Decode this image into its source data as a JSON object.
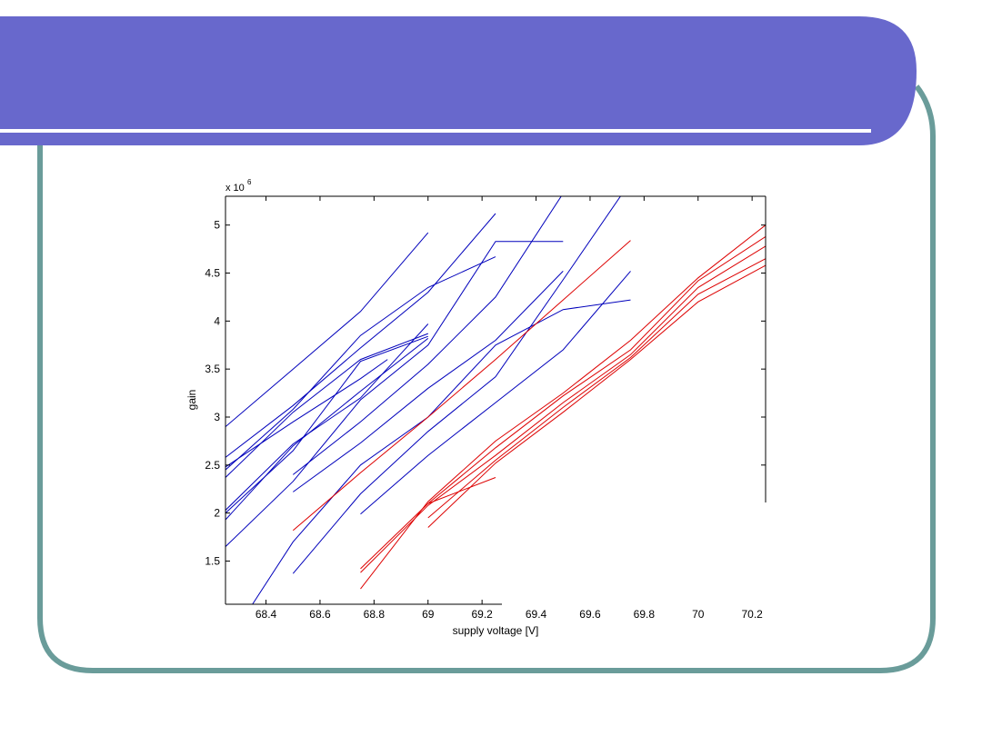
{
  "slide": {
    "theme_colors": {
      "banner": "#6868cc",
      "frame": "#6a9c9a",
      "white_rule": "#ffffff"
    }
  },
  "chart_data": {
    "type": "line",
    "title": "",
    "xlabel": "supply voltage [V]",
    "ylabel": "gain",
    "y_multiplier_label": "x 10",
    "y_multiplier_exponent": "6",
    "xlim": [
      68.25,
      70.25
    ],
    "ylim": [
      1.05,
      5.3
    ],
    "x_ticks": [
      68.4,
      68.6,
      68.8,
      69,
      69.2,
      69.4,
      69.6,
      69.8,
      70,
      70.2
    ],
    "x_tick_labels": [
      "68.4",
      "68.6",
      "68.8",
      "69",
      "69.2",
      "69.4",
      "69.6",
      "69.8",
      "70",
      "70.2"
    ],
    "y_ticks": [
      1.5,
      2,
      2.5,
      3,
      3.5,
      4,
      4.5,
      5
    ],
    "y_tick_labels": [
      "1.5",
      "2",
      "2.5",
      "3",
      "3.5",
      "4",
      "4.5",
      "5"
    ],
    "grid": false,
    "series_colors": {
      "blue": "#0000bb",
      "red": "#dd0000"
    },
    "series": [
      {
        "color": "blue",
        "points": [
          [
            68.25,
            2.9
          ],
          [
            68.5,
            3.5
          ],
          [
            68.75,
            4.1
          ],
          [
            69.0,
            4.92
          ]
        ]
      },
      {
        "color": "blue",
        "points": [
          [
            68.25,
            2.58
          ],
          [
            68.5,
            3.12
          ],
          [
            68.75,
            3.72
          ],
          [
            69.0,
            4.3
          ],
          [
            69.25,
            5.12
          ]
        ]
      },
      {
        "color": "blue",
        "points": [
          [
            68.25,
            2.45
          ],
          [
            68.5,
            3.08
          ],
          [
            68.75,
            3.85
          ],
          [
            69.0,
            4.35
          ],
          [
            69.25,
            4.67
          ]
        ]
      },
      {
        "color": "blue",
        "points": [
          [
            68.25,
            2.37
          ],
          [
            68.5,
            3.05
          ],
          [
            68.75,
            3.6
          ],
          [
            69.0,
            3.87
          ]
        ]
      },
      {
        "color": "blue",
        "points": [
          [
            68.25,
            2.48
          ],
          [
            68.5,
            2.95
          ],
          [
            68.75,
            3.4
          ],
          [
            68.85,
            3.6
          ]
        ]
      },
      {
        "color": "blue",
        "points": [
          [
            68.25,
            2.03
          ],
          [
            68.5,
            2.72
          ],
          [
            68.75,
            3.2
          ],
          [
            69.0,
            3.97
          ]
        ]
      },
      {
        "color": "blue",
        "points": [
          [
            68.25,
            1.93
          ],
          [
            68.5,
            2.7
          ],
          [
            68.75,
            3.27
          ],
          [
            69.0,
            3.82
          ]
        ]
      },
      {
        "color": "blue",
        "points": [
          [
            68.25,
            2.0
          ],
          [
            68.5,
            2.65
          ],
          [
            68.75,
            3.58
          ],
          [
            69.0,
            3.84
          ]
        ]
      },
      {
        "color": "blue",
        "points": [
          [
            68.25,
            1.65
          ],
          [
            68.5,
            2.33
          ],
          [
            68.75,
            3.18
          ],
          [
            69.0,
            3.75
          ],
          [
            69.25,
            4.83
          ],
          [
            69.5,
            4.83
          ]
        ]
      },
      {
        "color": "blue",
        "points": [
          [
            68.5,
            2.4
          ],
          [
            68.75,
            2.95
          ],
          [
            69.0,
            3.55
          ],
          [
            69.25,
            4.25
          ],
          [
            69.5,
            5.33
          ]
        ]
      },
      {
        "color": "blue",
        "points": [
          [
            68.5,
            2.22
          ],
          [
            68.75,
            2.73
          ],
          [
            69.0,
            3.3
          ],
          [
            69.25,
            3.8
          ],
          [
            69.5,
            4.52
          ]
        ]
      },
      {
        "color": "blue",
        "points": [
          [
            68.35,
            1.05
          ],
          [
            68.5,
            1.7
          ],
          [
            68.75,
            2.5
          ],
          [
            69.0,
            3.0
          ],
          [
            69.25,
            3.75
          ],
          [
            69.5,
            4.12
          ],
          [
            69.75,
            4.22
          ]
        ]
      },
      {
        "color": "blue",
        "points": [
          [
            68.5,
            1.37
          ],
          [
            68.75,
            2.2
          ],
          [
            69.0,
            2.85
          ],
          [
            69.25,
            3.42
          ],
          [
            69.5,
            4.43
          ],
          [
            69.72,
            5.33
          ]
        ]
      },
      {
        "color": "blue",
        "points": [
          [
            68.75,
            1.99
          ],
          [
            69.0,
            2.6
          ],
          [
            69.25,
            3.15
          ],
          [
            69.5,
            3.7
          ],
          [
            69.75,
            4.52
          ]
        ]
      },
      {
        "color": "red",
        "points": [
          [
            68.5,
            1.82
          ],
          [
            68.75,
            2.42
          ],
          [
            69.0,
            3.0
          ],
          [
            69.25,
            3.6
          ],
          [
            69.5,
            4.22
          ],
          [
            69.75,
            4.84
          ]
        ]
      },
      {
        "color": "red",
        "points": [
          [
            68.75,
            1.21
          ],
          [
            69.0,
            2.12
          ],
          [
            69.25,
            2.75
          ],
          [
            69.5,
            3.25
          ],
          [
            69.75,
            3.8
          ],
          [
            70.0,
            4.45
          ],
          [
            70.25,
            5.0
          ]
        ]
      },
      {
        "color": "red",
        "points": [
          [
            68.75,
            1.42
          ],
          [
            69.0,
            2.1
          ],
          [
            69.25,
            2.68
          ],
          [
            69.5,
            3.22
          ],
          [
            69.75,
            3.7
          ],
          [
            70.0,
            4.42
          ],
          [
            70.25,
            4.88
          ]
        ]
      },
      {
        "color": "red",
        "points": [
          [
            68.75,
            1.38
          ],
          [
            69.0,
            2.08
          ],
          [
            69.25,
            2.6
          ],
          [
            69.5,
            3.15
          ],
          [
            69.75,
            3.65
          ],
          [
            70.0,
            4.35
          ],
          [
            70.25,
            4.78
          ]
        ]
      },
      {
        "color": "red",
        "points": [
          [
            69.0,
            1.85
          ],
          [
            69.25,
            2.52
          ],
          [
            69.5,
            3.05
          ],
          [
            69.75,
            3.6
          ],
          [
            70.0,
            4.2
          ],
          [
            70.25,
            4.58
          ]
        ]
      },
      {
        "color": "red",
        "points": [
          [
            69.0,
            1.95
          ],
          [
            69.25,
            2.55
          ],
          [
            69.5,
            3.1
          ],
          [
            69.75,
            3.62
          ],
          [
            70.0,
            4.28
          ],
          [
            70.25,
            4.65
          ]
        ]
      },
      {
        "color": "red",
        "points": [
          [
            69.0,
            2.1
          ],
          [
            69.25,
            2.37
          ]
        ]
      }
    ]
  }
}
